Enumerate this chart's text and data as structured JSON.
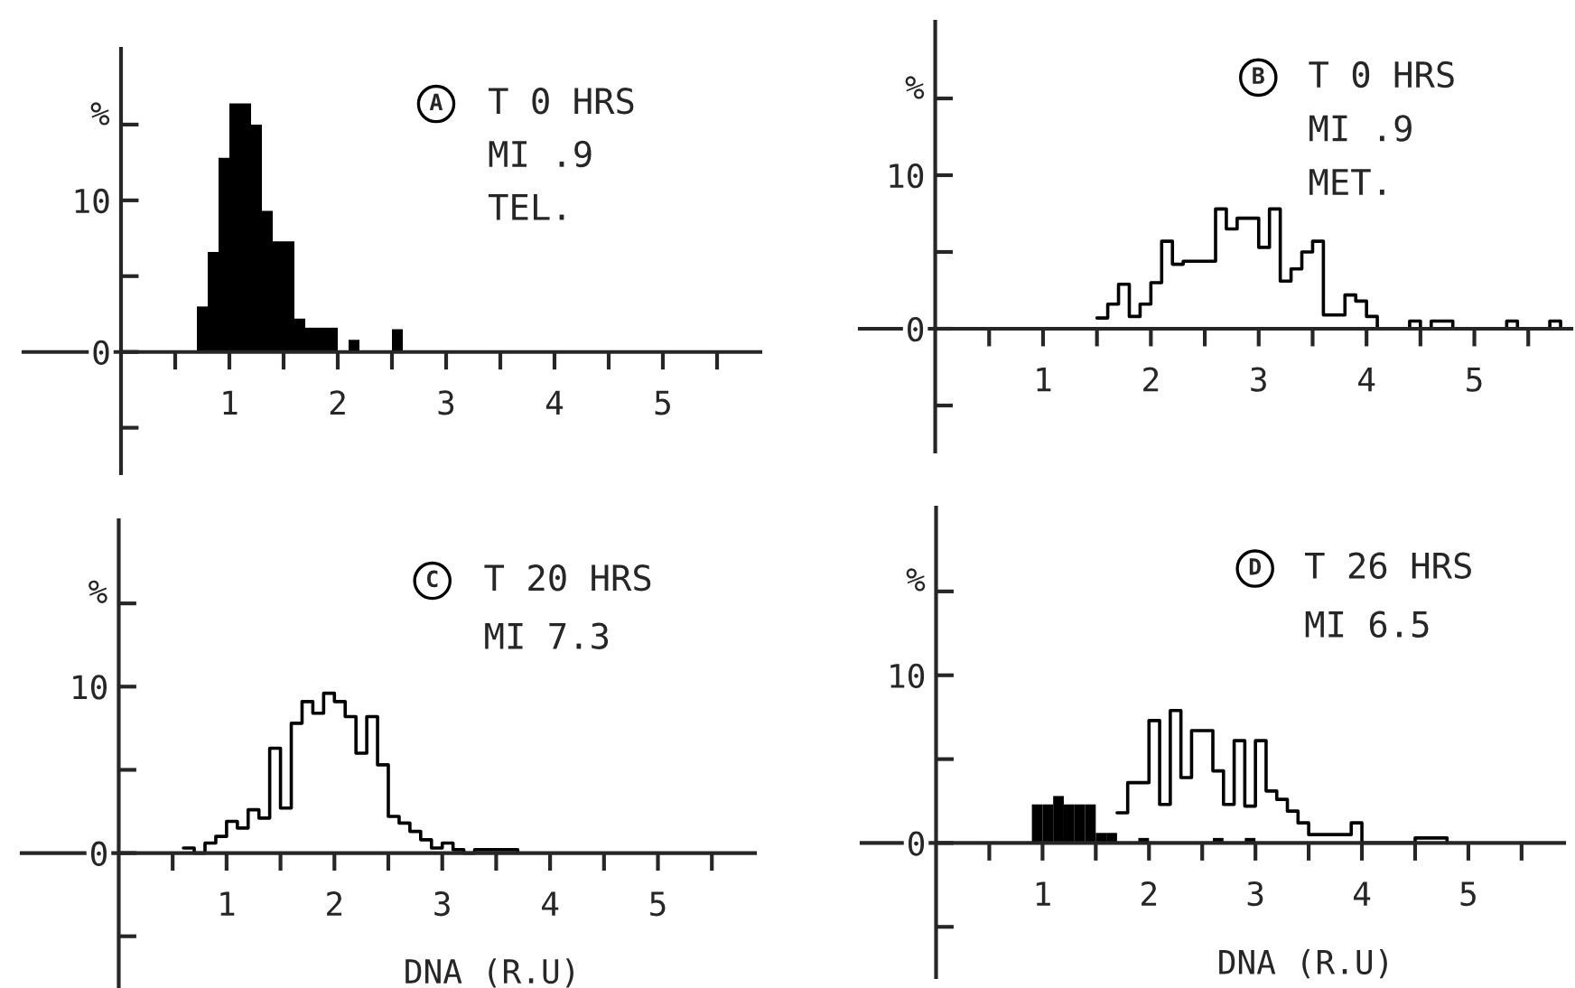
{
  "chart_data": [
    {
      "type": "histogram",
      "ylabel": "%",
      "annotations": [
        "A",
        "T 0 HRS",
        "MI .9",
        "TEL."
      ],
      "xlim": [
        -0.9,
        5.9
      ],
      "ylim": [
        -8,
        20
      ],
      "xticks": [
        {
          "value": 0.5,
          "label": null
        },
        1,
        {
          "value": 1.5,
          "label": null
        },
        2,
        {
          "value": 2.5,
          "label": null
        },
        3,
        {
          "value": 3.5,
          "label": null
        },
        4,
        {
          "value": 4.5,
          "label": null
        },
        5,
        {
          "value": 5.5,
          "label": null
        }
      ],
      "yticks": [
        {
          "value": -5,
          "label": null
        },
        {
          "value": 0,
          "label": "0"
        },
        {
          "value": 5,
          "label": null
        },
        10,
        {
          "value": 15,
          "label": null
        }
      ],
      "bins": [
        0.7,
        0.8,
        0.9,
        1.0,
        1.1,
        1.2,
        1.3,
        1.4,
        1.5,
        1.6,
        1.7,
        1.8,
        1.9,
        2.0,
        2.1,
        2.2,
        2.3,
        2.4,
        2.5,
        2.6
      ],
      "color": "#000000",
      "values": [
        3.0,
        6.6,
        12.8,
        16.4,
        16.4,
        15.0,
        9.3,
        7.3,
        7.3,
        2.2,
        1.6,
        1.6,
        1.6,
        0,
        0.8,
        0,
        0,
        0,
        1.5
      ]
    },
    {
      "type": "step",
      "ylabel": "%",
      "annotations": [
        "B",
        "T 0 HRS",
        "MI .9",
        "MET."
      ],
      "xlim": [
        -0.7,
        5.9
      ],
      "ylim": [
        -8,
        20
      ],
      "xticks": [
        {
          "value": 0.5,
          "label": null
        },
        1,
        {
          "value": 1.5,
          "label": null
        },
        2,
        {
          "value": 2.5,
          "label": null
        },
        3,
        {
          "value": 3.5,
          "label": null
        },
        4,
        {
          "value": 4.5,
          "label": null
        },
        5,
        {
          "value": 5.5,
          "label": null
        }
      ],
      "yticks": [
        {
          "value": -5,
          "label": null
        },
        {
          "value": 0,
          "label": "0"
        },
        {
          "value": 5,
          "label": null
        },
        10,
        {
          "value": 15,
          "label": null
        }
      ],
      "x": [
        1.5,
        1.6,
        1.7,
        1.8,
        1.9,
        2.0,
        2.1,
        2.2,
        2.3,
        2.4,
        2.5,
        2.6,
        2.7,
        2.8,
        2.9,
        3.0,
        3.1,
        3.2,
        3.3,
        3.4,
        3.5,
        3.6,
        3.7,
        3.8,
        3.9,
        4.0,
        4.1,
        4.2,
        4.3,
        4.4,
        4.5,
        4.6,
        4.7,
        4.8,
        4.9,
        5.0,
        5.1,
        5.2,
        5.3,
        5.4,
        5.5,
        5.6,
        5.7,
        5.8
      ],
      "color": "#000000",
      "values": [
        0.7,
        1.6,
        2.9,
        0.8,
        1.6,
        3.0,
        5.7,
        4.2,
        4.4,
        4.4,
        4.4,
        7.8,
        6.5,
        7.2,
        7.2,
        5.3,
        7.8,
        3.1,
        3.9,
        5.0,
        5.7,
        0.9,
        0.9,
        2.2,
        1.8,
        0.8,
        0,
        0,
        0,
        0.5,
        0,
        0.5,
        0.5,
        0,
        0,
        0,
        0,
        0,
        0.5,
        0,
        0,
        0,
        0.5,
        0
      ]
    },
    {
      "type": "step",
      "ylabel": "%",
      "xlabel": "DNA (R.U)",
      "annotations": [
        "C",
        "T 20 HRS",
        "MI 7.3"
      ],
      "xlim": [
        -0.9,
        5.9
      ],
      "ylim": [
        -8,
        20
      ],
      "xticks": [
        {
          "value": 0.5,
          "label": null
        },
        1,
        {
          "value": 1.5,
          "label": null
        },
        2,
        {
          "value": 2.5,
          "label": null
        },
        3,
        {
          "value": 3.5,
          "label": null
        },
        4,
        {
          "value": 4.5,
          "label": null
        },
        5,
        {
          "value": 5.5,
          "label": null
        }
      ],
      "yticks": [
        {
          "value": -5,
          "label": null
        },
        {
          "value": 0,
          "label": "0"
        },
        {
          "value": 5,
          "label": null
        },
        10,
        {
          "value": 15,
          "label": null
        }
      ],
      "x": [
        0.6,
        0.7,
        0.8,
        0.9,
        1.0,
        1.1,
        1.2,
        1.3,
        1.4,
        1.5,
        1.6,
        1.7,
        1.8,
        1.9,
        2.0,
        2.1,
        2.2,
        2.3,
        2.4,
        2.5,
        2.6,
        2.7,
        2.8,
        2.9,
        3.0,
        3.1,
        3.2,
        3.3,
        3.4,
        3.5,
        3.6,
        3.7
      ],
      "color": "#000000",
      "values": [
        0.3,
        0,
        0.6,
        1.0,
        1.9,
        1.5,
        2.6,
        2.1,
        6.3,
        2.7,
        7.8,
        9.1,
        8.4,
        9.6,
        9.1,
        8.2,
        6.0,
        8.2,
        5.3,
        2.2,
        1.8,
        1.3,
        0.8,
        0.3,
        0.6,
        0.2,
        0,
        0.2,
        0.2,
        0.2,
        0.2,
        0
      ]
    },
    {
      "type": "histogram",
      "ylabel": "%",
      "xlabel": "DNA (R.U)",
      "annotations": [
        "D",
        "T 26 HRS",
        "MI 6.5"
      ],
      "xlim": [
        -0.7,
        5.9
      ],
      "ylim": [
        -8,
        20
      ],
      "xticks": [
        {
          "value": 0.5,
          "label": null
        },
        1,
        {
          "value": 1.5,
          "label": null
        },
        2,
        {
          "value": 2.5,
          "label": null
        },
        3,
        {
          "value": 3.5,
          "label": null
        },
        4,
        {
          "value": 4.5,
          "label": null
        },
        5,
        {
          "value": 5.5,
          "label": null
        }
      ],
      "yticks": [
        {
          "value": -5,
          "label": null
        },
        {
          "value": 0,
          "label": "0"
        },
        {
          "value": 5,
          "label": null
        },
        10,
        {
          "value": 15,
          "label": null
        }
      ],
      "bins": [
        0.9,
        1.0,
        1.1,
        1.2,
        1.3,
        1.4,
        1.5,
        1.6,
        1.7,
        1.8,
        1.9,
        2.0,
        2.1,
        2.2,
        2.3,
        2.4,
        2.5,
        2.6,
        2.7,
        2.8,
        2.9,
        3.0
      ],
      "series": [
        {
          "type": "step",
          "color": "#000000",
          "x": [
            1.7,
            1.8,
            1.9,
            2.0,
            2.1,
            2.2,
            2.3,
            2.4,
            2.5,
            2.6,
            2.7,
            2.8,
            2.9,
            3.0,
            3.1,
            3.2,
            3.3,
            3.4,
            3.5,
            3.6,
            3.7,
            3.8,
            3.9,
            4.0,
            4.1,
            4.2,
            4.3,
            4.4,
            4.5,
            4.6,
            4.7,
            4.8
          ],
          "values": [
            1.8,
            3.6,
            3.6,
            7.3,
            2.3,
            7.9,
            3.9,
            6.7,
            6.7,
            4.3,
            2.3,
            6.1,
            2.2,
            6.1,
            3.1,
            2.6,
            1.9,
            1.2,
            0.5,
            0.5,
            0.5,
            0.5,
            1.2,
            0,
            0,
            0,
            0,
            0,
            0.3,
            0.3,
            0.3,
            0
          ]
        },
        {
          "color": "#000000",
          "values": [
            2.3,
            2.3,
            2.8,
            2.3,
            2.3,
            2.3,
            0.6,
            0.6,
            0,
            0,
            0.3,
            0,
            0,
            0,
            0,
            0,
            0,
            0.3,
            0,
            0,
            0.3
          ]
        }
      ]
    }
  ]
}
